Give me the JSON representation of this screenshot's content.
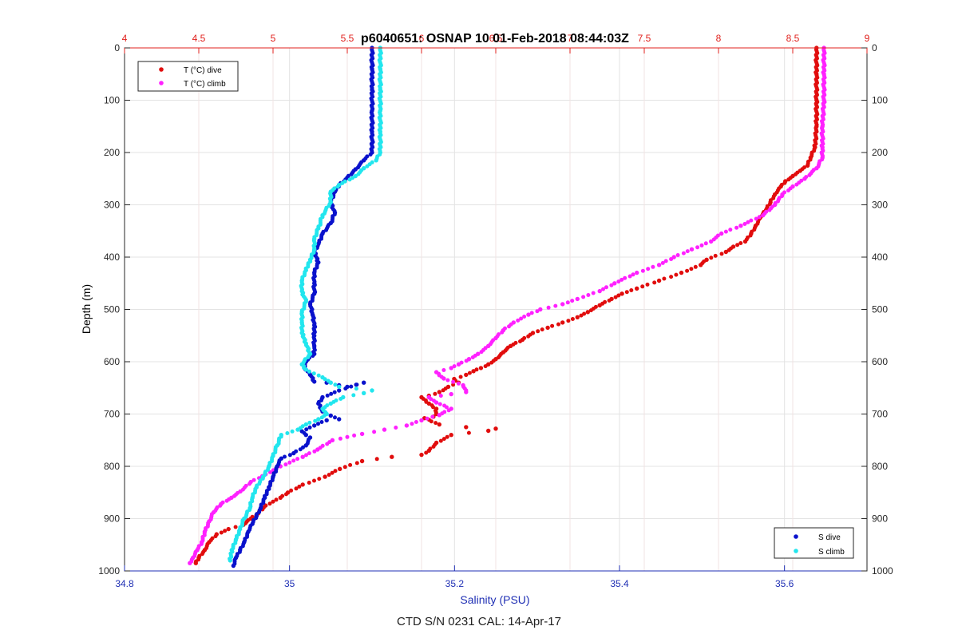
{
  "title": "p6040651: OSNAP 10 01-Feb-2018 08:44:03Z",
  "footer": "CTD S/N 0231  CAL: 14-Apr-17",
  "colors": {
    "temperature_axis": "#e0201c",
    "salinity_axis": "#1f2fb4",
    "t_dive": "#e10d0d",
    "t_climb": "#ff21ff",
    "s_dive": "#0a12cc",
    "s_climb": "#22e6ee",
    "grid": "#e3e3e3"
  },
  "chart_data": {
    "type": "scatter",
    "title": "p6040651: OSNAP 10 01-Feb-2018 08:44:03Z",
    "xlabel_bottom": "Salinity (PSU)",
    "xlabel_top": "",
    "ylabel": "Depth (m)",
    "y_reversed": true,
    "grid": true,
    "x_bottom": {
      "lim": [
        34.8,
        35.7
      ],
      "ticks": [
        34.8,
        35,
        35.2,
        35.4,
        35.6
      ]
    },
    "x_top": {
      "lim": [
        4,
        9
      ],
      "ticks": [
        4,
        4.5,
        5,
        5.5,
        6,
        6.5,
        7,
        7.5,
        8,
        8.5,
        9
      ]
    },
    "y": {
      "lim": [
        0,
        1000
      ],
      "ticks": [
        0,
        100,
        200,
        300,
        400,
        500,
        600,
        700,
        800,
        900,
        1000
      ]
    },
    "legends": [
      {
        "placement": "top-left",
        "entries": [
          {
            "label": "T (°C) dive",
            "series": "T_dive"
          },
          {
            "label": "T (°C) climb",
            "series": "T_climb"
          }
        ]
      },
      {
        "placement": "bottom-right",
        "entries": [
          {
            "label": "S dive",
            "series": "S_dive"
          },
          {
            "label": "S climb",
            "series": "S_climb"
          }
        ]
      }
    ],
    "series": [
      {
        "name": "T (°C) dive",
        "key": "T_dive",
        "axis": "top",
        "points": [
          [
            8.66,
            0
          ],
          [
            8.66,
            50
          ],
          [
            8.66,
            100
          ],
          [
            8.66,
            150
          ],
          [
            8.65,
            190
          ],
          [
            8.62,
            210
          ],
          [
            8.6,
            225
          ],
          [
            8.55,
            235
          ],
          [
            8.5,
            245
          ],
          [
            8.45,
            255
          ],
          [
            8.42,
            265
          ],
          [
            8.38,
            280
          ],
          [
            8.35,
            295
          ],
          [
            8.32,
            310
          ],
          [
            8.28,
            325
          ],
          [
            8.25,
            340
          ],
          [
            8.22,
            355
          ],
          [
            8.18,
            370
          ],
          [
            8.1,
            380
          ],
          [
            8.05,
            390
          ],
          [
            7.92,
            405
          ],
          [
            7.88,
            415
          ],
          [
            7.75,
            430
          ],
          [
            7.6,
            445
          ],
          [
            7.45,
            460
          ],
          [
            7.35,
            470
          ],
          [
            7.28,
            480
          ],
          [
            7.2,
            492
          ],
          [
            7.12,
            505
          ],
          [
            7.05,
            515
          ],
          [
            6.95,
            525
          ],
          [
            6.85,
            535
          ],
          [
            6.75,
            545
          ],
          [
            6.68,
            558
          ],
          [
            6.6,
            570
          ],
          [
            6.55,
            582
          ],
          [
            6.5,
            595
          ],
          [
            6.45,
            605
          ],
          [
            6.4,
            612
          ],
          [
            6.35,
            618
          ],
          [
            6.3,
            625
          ],
          [
            6.22,
            633
          ],
          [
            6.25,
            640
          ],
          [
            6.18,
            648
          ],
          [
            6.12,
            658
          ],
          [
            6.05,
            665
          ],
          [
            6.0,
            668
          ],
          [
            6.05,
            680
          ],
          [
            6.1,
            690
          ],
          [
            6.1,
            700
          ],
          [
            6.08,
            705
          ],
          [
            6.02,
            708
          ],
          [
            6.12,
            720
          ],
          [
            6.3,
            725
          ],
          [
            6.5,
            728
          ],
          [
            6.45,
            732
          ],
          [
            6.2,
            740
          ],
          [
            6.1,
            755
          ],
          [
            6.05,
            770
          ],
          [
            6.0,
            778
          ],
          [
            5.8,
            782
          ],
          [
            5.6,
            790
          ],
          [
            5.45,
            805
          ],
          [
            5.35,
            820
          ],
          [
            5.2,
            835
          ],
          [
            5.1,
            850
          ],
          [
            5.05,
            860
          ],
          [
            4.95,
            875
          ],
          [
            4.9,
            890
          ],
          [
            4.85,
            900
          ],
          [
            4.8,
            912
          ],
          [
            4.7,
            920
          ],
          [
            4.62,
            930
          ],
          [
            4.57,
            945
          ],
          [
            4.54,
            960
          ],
          [
            4.5,
            975
          ],
          [
            4.48,
            985
          ]
        ]
      },
      {
        "name": "T (°C) climb",
        "key": "T_climb",
        "axis": "top",
        "points": [
          [
            8.71,
            0
          ],
          [
            8.71,
            50
          ],
          [
            8.71,
            100
          ],
          [
            8.7,
            150
          ],
          [
            8.7,
            190
          ],
          [
            8.7,
            210
          ],
          [
            8.66,
            230
          ],
          [
            8.58,
            250
          ],
          [
            8.5,
            265
          ],
          [
            8.43,
            280
          ],
          [
            8.38,
            300
          ],
          [
            8.3,
            320
          ],
          [
            8.15,
            340
          ],
          [
            8.02,
            355
          ],
          [
            7.95,
            370
          ],
          [
            7.82,
            385
          ],
          [
            7.7,
            400
          ],
          [
            7.6,
            415
          ],
          [
            7.45,
            430
          ],
          [
            7.3,
            450
          ],
          [
            7.2,
            465
          ],
          [
            7.05,
            480
          ],
          [
            6.95,
            490
          ],
          [
            6.8,
            500
          ],
          [
            6.72,
            510
          ],
          [
            6.62,
            525
          ],
          [
            6.55,
            540
          ],
          [
            6.5,
            555
          ],
          [
            6.45,
            570
          ],
          [
            6.38,
            585
          ],
          [
            6.32,
            595
          ],
          [
            6.25,
            605
          ],
          [
            6.2,
            612
          ],
          [
            6.1,
            620
          ],
          [
            6.15,
            632
          ],
          [
            6.28,
            645
          ],
          [
            6.3,
            658
          ],
          [
            6.2,
            662
          ],
          [
            6.05,
            668
          ],
          [
            6.1,
            678
          ],
          [
            6.2,
            690
          ],
          [
            6.12,
            702
          ],
          [
            6.0,
            712
          ],
          [
            5.9,
            722
          ],
          [
            5.75,
            730
          ],
          [
            5.6,
            738
          ],
          [
            5.4,
            750
          ],
          [
            5.3,
            768
          ],
          [
            5.2,
            782
          ],
          [
            5.05,
            800
          ],
          [
            4.95,
            815
          ],
          [
            4.85,
            830
          ],
          [
            4.78,
            848
          ],
          [
            4.72,
            860
          ],
          [
            4.65,
            872
          ],
          [
            4.6,
            888
          ],
          [
            4.57,
            905
          ],
          [
            4.54,
            925
          ],
          [
            4.52,
            945
          ],
          [
            4.49,
            960
          ],
          [
            4.46,
            975
          ],
          [
            4.44,
            985
          ]
        ]
      },
      {
        "name": "S dive",
        "key": "S_dive",
        "axis": "bottom",
        "points": [
          [
            35.1,
            0
          ],
          [
            35.1,
            40
          ],
          [
            35.1,
            80
          ],
          [
            35.1,
            120
          ],
          [
            35.1,
            160
          ],
          [
            35.1,
            200
          ],
          [
            35.09,
            215
          ],
          [
            35.08,
            232
          ],
          [
            35.07,
            248
          ],
          [
            35.06,
            262
          ],
          [
            35.055,
            275
          ],
          [
            35.05,
            295
          ],
          [
            35.055,
            315
          ],
          [
            35.05,
            335
          ],
          [
            35.04,
            355
          ],
          [
            35.035,
            375
          ],
          [
            35.03,
            390
          ],
          [
            35.035,
            410
          ],
          [
            35.03,
            430
          ],
          [
            35.03,
            450
          ],
          [
            35.03,
            470
          ],
          [
            35.025,
            490
          ],
          [
            35.028,
            510
          ],
          [
            35.03,
            530
          ],
          [
            35.03,
            550
          ],
          [
            35.03,
            570
          ],
          [
            35.03,
            585
          ],
          [
            35.02,
            600
          ],
          [
            35.018,
            612
          ],
          [
            35.025,
            625
          ],
          [
            35.03,
            638
          ],
          [
            35.045,
            640
          ],
          [
            35.06,
            645
          ],
          [
            35.07,
            648
          ],
          [
            35.09,
            640
          ],
          [
            35.06,
            655
          ],
          [
            35.04,
            668
          ],
          [
            35.035,
            680
          ],
          [
            35.04,
            695
          ],
          [
            35.05,
            703
          ],
          [
            35.06,
            710
          ],
          [
            35.045,
            712
          ],
          [
            35.03,
            722
          ],
          [
            35.015,
            733
          ],
          [
            35.02,
            740
          ],
          [
            35.025,
            745
          ],
          [
            35.02,
            760
          ],
          [
            35.005,
            775
          ],
          [
            34.99,
            785
          ],
          [
            34.985,
            800
          ],
          [
            34.98,
            820
          ],
          [
            34.975,
            840
          ],
          [
            34.97,
            860
          ],
          [
            34.965,
            880
          ],
          [
            34.96,
            895
          ],
          [
            34.955,
            910
          ],
          [
            34.95,
            925
          ],
          [
            34.945,
            945
          ],
          [
            34.94,
            960
          ],
          [
            34.935,
            975
          ],
          [
            34.932,
            990
          ]
        ]
      },
      {
        "name": "S climb",
        "key": "S_climb",
        "axis": "bottom",
        "points": [
          [
            35.11,
            0
          ],
          [
            35.11,
            40
          ],
          [
            35.11,
            80
          ],
          [
            35.11,
            120
          ],
          [
            35.11,
            160
          ],
          [
            35.11,
            200
          ],
          [
            35.105,
            215
          ],
          [
            35.09,
            230
          ],
          [
            35.08,
            245
          ],
          [
            35.06,
            262
          ],
          [
            35.05,
            275
          ],
          [
            35.05,
            295
          ],
          [
            35.04,
            320
          ],
          [
            35.035,
            345
          ],
          [
            35.03,
            365
          ],
          [
            35.03,
            385
          ],
          [
            35.025,
            405
          ],
          [
            35.02,
            425
          ],
          [
            35.015,
            445
          ],
          [
            35.015,
            465
          ],
          [
            35.02,
            485
          ],
          [
            35.015,
            505
          ],
          [
            35.015,
            525
          ],
          [
            35.015,
            545
          ],
          [
            35.02,
            565
          ],
          [
            35.025,
            585
          ],
          [
            35.015,
            605
          ],
          [
            35.02,
            615
          ],
          [
            35.04,
            630
          ],
          [
            35.05,
            640
          ],
          [
            35.06,
            648
          ],
          [
            35.1,
            655
          ],
          [
            35.09,
            660
          ],
          [
            35.065,
            668
          ],
          [
            35.05,
            680
          ],
          [
            35.04,
            690
          ],
          [
            35.045,
            700
          ],
          [
            35.035,
            710
          ],
          [
            35.02,
            720
          ],
          [
            35.01,
            730
          ],
          [
            34.99,
            740
          ],
          [
            34.985,
            760
          ],
          [
            34.98,
            780
          ],
          [
            34.975,
            800
          ],
          [
            34.968,
            820
          ],
          [
            34.96,
            840
          ],
          [
            34.955,
            860
          ],
          [
            34.952,
            880
          ],
          [
            34.945,
            900
          ],
          [
            34.94,
            920
          ],
          [
            34.935,
            940
          ],
          [
            34.93,
            960
          ],
          [
            34.928,
            980
          ]
        ]
      }
    ]
  }
}
